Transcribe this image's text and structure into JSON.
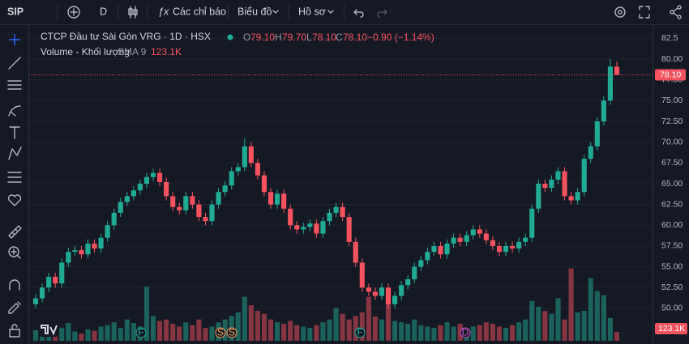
{
  "toolbar": {
    "symbol": "SIP",
    "interval": "D",
    "indicators": "Các chỉ báo",
    "chart_menu": "Biểu đồ",
    "profile_menu": "Hồ sơ"
  },
  "legend": {
    "title": "CTCP Đầu tư Sài Gòn VRG · 1D · HSX",
    "ohlc": [
      {
        "key": "O",
        "value": "79.10"
      },
      {
        "key": "H",
        "value": "79.70"
      },
      {
        "key": "L",
        "value": "78.10"
      },
      {
        "key": "C",
        "value": "78.10"
      }
    ],
    "change": "−0.90 (−1.14%)",
    "volume_name": "Volume - Khối lượng",
    "volume_sma": "SMA 9",
    "volume_value": "123.1K"
  },
  "events": [
    "F",
    "S",
    "S",
    "F",
    "D"
  ],
  "chart_data": {
    "type": "candlestick",
    "up_color": "#22ab94",
    "down_color": "#f7525f",
    "ylim": [
      46.1,
      83.7
    ],
    "yticks": [
      82.5,
      {
        "value": 80,
        "label": "80.00"
      },
      {
        "value": 77.5,
        "label": "77.50"
      },
      {
        "value": 75,
        "label": "75.00"
      },
      {
        "value": 72.5,
        "label": "72.50"
      },
      {
        "value": 70,
        "label": "70.00"
      },
      {
        "value": 67.5,
        "label": "67.50"
      },
      {
        "value": 65,
        "label": "65.00"
      },
      {
        "value": 62.5,
        "label": "62.50"
      },
      {
        "value": 60,
        "label": "60.00"
      },
      {
        "value": 57.5,
        "label": "57.50"
      },
      {
        "value": 55,
        "label": "55.00"
      },
      {
        "value": 52.5,
        "label": "52.50"
      },
      {
        "value": 50,
        "label": "50.00"
      }
    ],
    "grid": true,
    "open": [
      50.5,
      51.2,
      52.5,
      53.8,
      53.0,
      55.5,
      56.8,
      57.0,
      56.5,
      57.8,
      57.2,
      58.5,
      60.0,
      61.5,
      62.8,
      63.5,
      64.2,
      65.0,
      65.8,
      66.3,
      65.2,
      63.5,
      62.2,
      61.8,
      63.5,
      62.5,
      61.0,
      60.5,
      62.5,
      64.0,
      64.8,
      66.5,
      67.0,
      69.5,
      67.5,
      66.0,
      64.0,
      62.5,
      63.8,
      62.0,
      60.0,
      59.5,
      59.8,
      60.2,
      59.0,
      60.5,
      61.5,
      62.2,
      61.0,
      58.0,
      55.5,
      52.5,
      52.0,
      51.5,
      52.5,
      50.5,
      51.5,
      52.8,
      53.5,
      55.0,
      55.8,
      56.8,
      57.5,
      56.5,
      57.8,
      58.5,
      58.0,
      58.8,
      59.5,
      59.0,
      58.2,
      57.5,
      56.8,
      57.5,
      57.2,
      58.0,
      58.5,
      62.0,
      65.0,
      64.5,
      65.5,
      66.5,
      63.5,
      63.0,
      64.0,
      68.0,
      69.5,
      72.5,
      75.0,
      79.1
    ],
    "high": [
      51.7,
      53.0,
      54.3,
      54.3,
      56.0,
      57.3,
      57.5,
      57.5,
      58.3,
      58.3,
      59.0,
      60.5,
      62.0,
      63.3,
      64.0,
      64.7,
      65.5,
      66.3,
      66.8,
      66.8,
      65.7,
      64.0,
      62.7,
      64.0,
      64.0,
      63.0,
      61.5,
      63.0,
      64.5,
      65.3,
      67.0,
      67.5,
      70.5,
      70.0,
      68.0,
      66.5,
      64.5,
      64.3,
      64.3,
      62.5,
      60.5,
      60.3,
      60.7,
      60.7,
      61.0,
      62.0,
      62.7,
      62.7,
      61.5,
      58.5,
      56.0,
      53.0,
      52.5,
      53.0,
      53.0,
      52.0,
      53.3,
      54.0,
      55.5,
      56.3,
      57.3,
      58.0,
      58.0,
      58.3,
      59.0,
      59.0,
      59.3,
      60.0,
      60.0,
      59.5,
      58.7,
      58.0,
      58.0,
      58.0,
      58.5,
      59.0,
      62.5,
      65.5,
      65.5,
      66.0,
      67.0,
      67.0,
      64.0,
      64.5,
      68.5,
      70.0,
      73.0,
      75.5,
      80.0,
      79.7
    ],
    "low": [
      50.0,
      50.7,
      52.0,
      52.5,
      52.5,
      55.0,
      56.3,
      56.0,
      56.0,
      56.7,
      56.7,
      58.0,
      59.5,
      61.0,
      62.3,
      63.0,
      63.7,
      64.5,
      65.3,
      64.7,
      63.0,
      61.7,
      61.3,
      61.3,
      62.0,
      60.5,
      60.0,
      60.0,
      62.0,
      63.5,
      64.3,
      66.0,
      66.5,
      67.0,
      65.5,
      63.5,
      62.0,
      62.0,
      61.5,
      59.5,
      59.0,
      59.0,
      59.3,
      58.5,
      58.5,
      60.0,
      61.0,
      60.5,
      57.5,
      55.0,
      52.0,
      51.5,
      51.0,
      51.0,
      50.0,
      50.0,
      51.0,
      52.3,
      53.0,
      54.5,
      55.3,
      56.3,
      56.0,
      56.0,
      57.3,
      57.5,
      57.5,
      58.3,
      58.5,
      57.7,
      57.0,
      56.3,
      56.3,
      56.7,
      56.7,
      57.5,
      58.0,
      61.5,
      64.0,
      64.0,
      65.0,
      63.0,
      62.5,
      62.5,
      63.5,
      67.5,
      69.0,
      72.0,
      74.5,
      78.1
    ],
    "close": [
      51.2,
      52.5,
      53.8,
      53.0,
      55.5,
      56.8,
      57.0,
      56.5,
      57.8,
      57.2,
      58.5,
      60.0,
      61.5,
      62.8,
      63.5,
      64.2,
      65.0,
      65.8,
      66.3,
      65.2,
      63.5,
      62.2,
      61.8,
      63.5,
      62.5,
      61.0,
      60.5,
      62.5,
      64.0,
      64.8,
      66.5,
      67.0,
      69.5,
      67.5,
      66.0,
      64.0,
      62.5,
      63.8,
      62.0,
      60.0,
      59.5,
      59.8,
      60.2,
      59.0,
      60.5,
      61.5,
      62.2,
      61.0,
      58.0,
      55.5,
      52.5,
      52.0,
      51.5,
      52.5,
      50.5,
      51.5,
      52.8,
      53.5,
      55.0,
      55.8,
      56.8,
      57.5,
      56.5,
      57.8,
      58.5,
      58.0,
      58.8,
      59.5,
      59.0,
      58.2,
      57.5,
      56.8,
      57.5,
      57.2,
      58.0,
      58.5,
      62.0,
      65.0,
      64.5,
      65.5,
      66.5,
      63.5,
      63.0,
      64.0,
      68.0,
      69.5,
      72.5,
      75.0,
      79.1,
      78.1
    ],
    "volume": [
      150,
      120,
      200,
      90,
      180,
      250,
      130,
      100,
      160,
      140,
      200,
      220,
      260,
      180,
      300,
      250,
      200,
      760,
      350,
      280,
      300,
      240,
      200,
      260,
      220,
      300,
      180,
      200,
      260,
      300,
      350,
      400,
      620,
      500,
      420,
      380,
      300,
      260,
      240,
      280,
      220,
      200,
      180,
      220,
      260,
      300,
      460,
      380,
      300,
      350,
      400,
      620,
      340,
      300,
      700,
      280,
      260,
      240,
      300,
      220,
      200,
      180,
      220,
      260,
      200,
      240,
      180,
      200,
      220,
      260,
      240,
      200,
      180,
      220,
      260,
      300,
      560,
      480,
      420,
      380,
      600,
      300,
      1020,
      400,
      420,
      880,
      700,
      640,
      320,
      123.1
    ],
    "volume_lim": [
      0,
      4400
    ],
    "last_price_label": "78.10",
    "last_volume_label": "123.1K"
  }
}
